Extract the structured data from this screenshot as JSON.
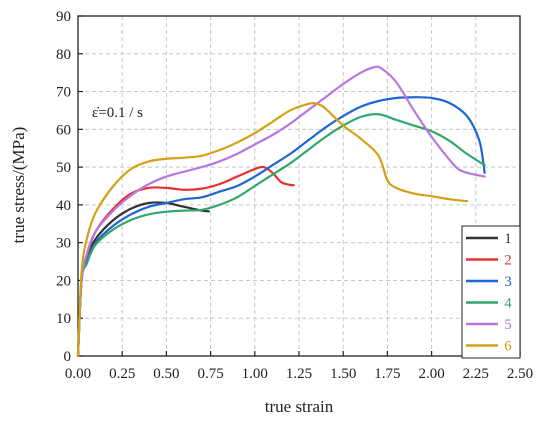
{
  "chart_data": {
    "type": "line",
    "xlabel": "true strain",
    "ylabel": "true stress/(MPa)",
    "xlim": [
      0,
      2.5
    ],
    "ylim": [
      0,
      90
    ],
    "xticks": [
      0.0,
      0.25,
      0.5,
      0.75,
      1.0,
      1.25,
      1.5,
      1.75,
      2.0,
      2.25,
      2.5
    ],
    "xtick_labels": [
      "0.00",
      "0.25",
      "0.50",
      "0.75",
      "1.00",
      "1.25",
      "1.50",
      "1.75",
      "2.00",
      "2.25",
      "2.50"
    ],
    "yticks": [
      0,
      10,
      20,
      30,
      40,
      50,
      60,
      70,
      80,
      90
    ],
    "ytick_labels": [
      "0",
      "10",
      "20",
      "30",
      "40",
      "50",
      "60",
      "70",
      "80",
      "90"
    ],
    "grid": true,
    "legend_position": "bottom-right",
    "annotation": "ε̇=0.1 / s",
    "series": [
      {
        "name": "1",
        "color": "#333333",
        "points": [
          [
            0,
            0
          ],
          [
            0.02,
            20
          ],
          [
            0.05,
            26
          ],
          [
            0.1,
            31
          ],
          [
            0.2,
            36
          ],
          [
            0.3,
            39
          ],
          [
            0.4,
            40.5
          ],
          [
            0.5,
            40.5
          ],
          [
            0.6,
            39.5
          ],
          [
            0.7,
            38.5
          ],
          [
            0.74,
            38.3
          ]
        ]
      },
      {
        "name": "2",
        "color": "#e8322f",
        "points": [
          [
            0,
            0
          ],
          [
            0.02,
            20
          ],
          [
            0.05,
            26.5
          ],
          [
            0.1,
            33
          ],
          [
            0.2,
            39
          ],
          [
            0.3,
            43
          ],
          [
            0.4,
            44.5
          ],
          [
            0.5,
            44.5
          ],
          [
            0.6,
            44
          ],
          [
            0.7,
            44.3
          ],
          [
            0.8,
            45.5
          ],
          [
            0.9,
            47.5
          ],
          [
            1.0,
            49.5
          ],
          [
            1.05,
            50
          ],
          [
            1.1,
            48.5
          ],
          [
            1.15,
            46
          ],
          [
            1.2,
            45.3
          ],
          [
            1.22,
            45.2
          ]
        ]
      },
      {
        "name": "3",
        "color": "#1f66d0",
        "points": [
          [
            0,
            0
          ],
          [
            0.02,
            20
          ],
          [
            0.05,
            25
          ],
          [
            0.1,
            30
          ],
          [
            0.2,
            34.5
          ],
          [
            0.3,
            37.5
          ],
          [
            0.4,
            39.5
          ],
          [
            0.5,
            40.5
          ],
          [
            0.6,
            41.5
          ],
          [
            0.7,
            42
          ],
          [
            0.8,
            43.5
          ],
          [
            0.9,
            45
          ],
          [
            1.0,
            47.5
          ],
          [
            1.1,
            50.5
          ],
          [
            1.2,
            53.5
          ],
          [
            1.3,
            57
          ],
          [
            1.4,
            60.5
          ],
          [
            1.5,
            63.5
          ],
          [
            1.6,
            66
          ],
          [
            1.7,
            67.5
          ],
          [
            1.8,
            68.3
          ],
          [
            1.9,
            68.5
          ],
          [
            2.0,
            68.3
          ],
          [
            2.1,
            67
          ],
          [
            2.2,
            63.5
          ],
          [
            2.27,
            57
          ],
          [
            2.3,
            48.5
          ]
        ]
      },
      {
        "name": "4",
        "color": "#2fa86a",
        "points": [
          [
            0,
            0
          ],
          [
            0.02,
            20
          ],
          [
            0.05,
            24.5
          ],
          [
            0.1,
            29.5
          ],
          [
            0.2,
            33.5
          ],
          [
            0.3,
            36
          ],
          [
            0.4,
            37.5
          ],
          [
            0.5,
            38.2
          ],
          [
            0.6,
            38.5
          ],
          [
            0.7,
            38.7
          ],
          [
            0.8,
            40
          ],
          [
            0.9,
            42
          ],
          [
            1.0,
            45
          ],
          [
            1.1,
            48
          ],
          [
            1.2,
            51
          ],
          [
            1.3,
            54.5
          ],
          [
            1.4,
            58
          ],
          [
            1.5,
            61
          ],
          [
            1.6,
            63.3
          ],
          [
            1.7,
            64
          ],
          [
            1.8,
            62.5
          ],
          [
            1.9,
            61
          ],
          [
            2.0,
            59.5
          ],
          [
            2.1,
            57
          ],
          [
            2.2,
            53.5
          ],
          [
            2.3,
            50.5
          ]
        ]
      },
      {
        "name": "5",
        "color": "#b877e0",
        "points": [
          [
            0,
            0
          ],
          [
            0.02,
            20
          ],
          [
            0.05,
            27
          ],
          [
            0.1,
            33
          ],
          [
            0.2,
            38.5
          ],
          [
            0.3,
            42.5
          ],
          [
            0.4,
            45.5
          ],
          [
            0.5,
            47.5
          ],
          [
            0.6,
            48.8
          ],
          [
            0.7,
            50
          ],
          [
            0.8,
            51.5
          ],
          [
            0.9,
            53.5
          ],
          [
            1.0,
            56
          ],
          [
            1.1,
            58.5
          ],
          [
            1.2,
            61.5
          ],
          [
            1.3,
            65
          ],
          [
            1.4,
            68.5
          ],
          [
            1.5,
            72
          ],
          [
            1.6,
            75
          ],
          [
            1.68,
            76.5
          ],
          [
            1.72,
            76
          ],
          [
            1.8,
            72.5
          ],
          [
            1.9,
            65
          ],
          [
            2.0,
            58
          ],
          [
            2.1,
            52
          ],
          [
            2.15,
            49.5
          ],
          [
            2.2,
            48.5
          ],
          [
            2.3,
            47.5
          ]
        ]
      },
      {
        "name": "6",
        "color": "#d4a017",
        "points": [
          [
            0,
            0
          ],
          [
            0.02,
            22
          ],
          [
            0.05,
            31
          ],
          [
            0.1,
            38
          ],
          [
            0.2,
            45
          ],
          [
            0.3,
            49.5
          ],
          [
            0.4,
            51.5
          ],
          [
            0.5,
            52.2
          ],
          [
            0.6,
            52.5
          ],
          [
            0.7,
            53
          ],
          [
            0.8,
            54.5
          ],
          [
            0.9,
            56.5
          ],
          [
            1.0,
            59
          ],
          [
            1.1,
            62
          ],
          [
            1.2,
            65
          ],
          [
            1.3,
            66.7
          ],
          [
            1.35,
            66.8
          ],
          [
            1.4,
            65.5
          ],
          [
            1.5,
            61
          ],
          [
            1.6,
            57.5
          ],
          [
            1.7,
            53
          ],
          [
            1.75,
            46.5
          ],
          [
            1.8,
            44.5
          ],
          [
            1.9,
            43
          ],
          [
            2.0,
            42.3
          ],
          [
            2.1,
            41.5
          ],
          [
            2.2,
            41
          ]
        ]
      }
    ]
  }
}
